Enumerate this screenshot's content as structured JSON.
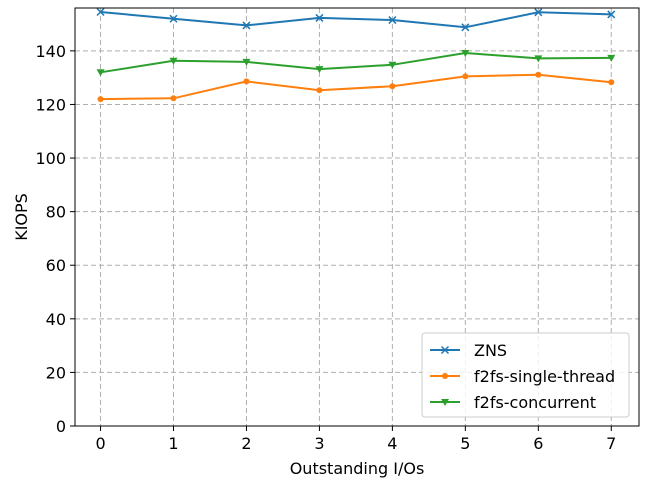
{
  "chart_data": {
    "type": "line",
    "title": "",
    "xlabel": "Outstanding I/Os",
    "ylabel": "KIOPS",
    "x": [
      0,
      1,
      2,
      3,
      4,
      5,
      6,
      7
    ],
    "xlim": [
      -0.35,
      7.38
    ],
    "ylim": [
      0,
      156
    ],
    "xticks": [
      "0",
      "1",
      "2",
      "3",
      "4",
      "5",
      "6",
      "7"
    ],
    "yticks": [
      "0",
      "20",
      "40",
      "60",
      "80",
      "100",
      "120",
      "140"
    ],
    "grid": true,
    "legend_position": "lower-right",
    "series": [
      {
        "name": "ZNS",
        "color": "#1f77b4",
        "marker": "x",
        "values": [
          154.5,
          152.0,
          149.5,
          152.3,
          151.5,
          148.8,
          154.4,
          153.6
        ]
      },
      {
        "name": "f2fs-single-thread",
        "color": "#ff7f0e",
        "marker": "circle",
        "values": [
          122.0,
          122.3,
          128.6,
          125.3,
          126.8,
          130.5,
          131.1,
          128.3
        ]
      },
      {
        "name": "f2fs-concurrent",
        "color": "#2ca02c",
        "marker": "triangle-down",
        "values": [
          132.0,
          136.3,
          135.9,
          133.2,
          134.8,
          139.2,
          137.2,
          137.4
        ]
      }
    ]
  }
}
